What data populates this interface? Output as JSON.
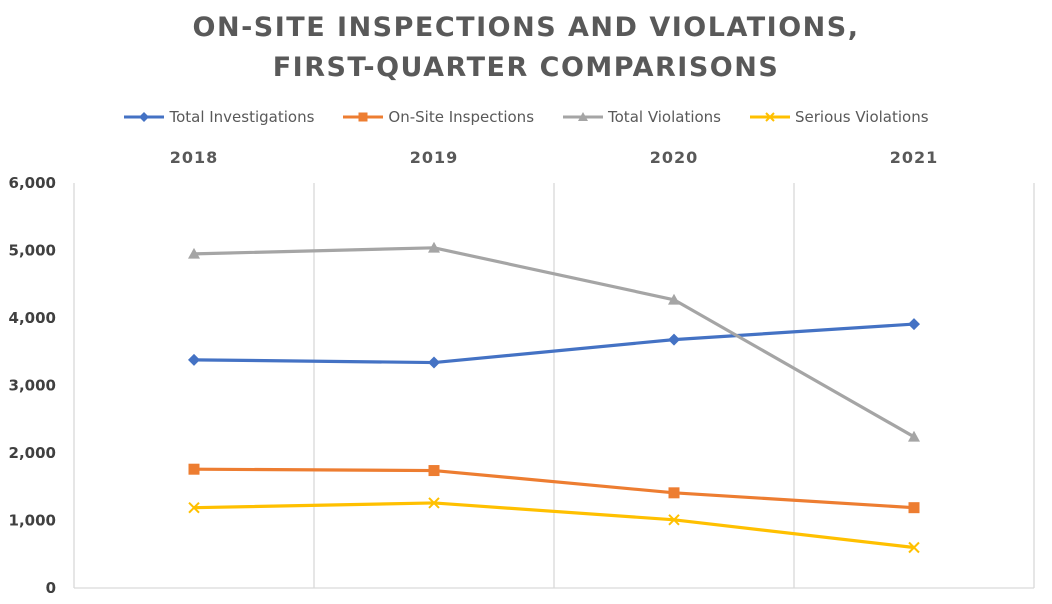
{
  "chart_data": {
    "type": "line",
    "title_line1": "ON-SITE INSPECTIONS AND VIOLATIONS,",
    "title_line2": "FIRST-QUARTER COMPARISONS",
    "categories": [
      "2018",
      "2019",
      "2020",
      "2021"
    ],
    "ylim": [
      0,
      6000
    ],
    "yticks": [
      "0",
      "1,000",
      "2,000",
      "3,000",
      "4,000",
      "5,000",
      "6,000"
    ],
    "ytick_values": [
      0,
      1000,
      2000,
      3000,
      4000,
      5000,
      6000
    ],
    "legend_position": "top",
    "grid": "vertical",
    "series": [
      {
        "name": "Total Investigations",
        "values": [
          3380,
          3340,
          3680,
          3910
        ],
        "color": "#4472C4",
        "marker": "diamond"
      },
      {
        "name": "On-Site Inspections",
        "values": [
          1760,
          1740,
          1410,
          1190
        ],
        "color": "#ED7D31",
        "marker": "square"
      },
      {
        "name": "Total Violations",
        "values": [
          4950,
          5040,
          4270,
          2240
        ],
        "color": "#A5A5A5",
        "marker": "triangle"
      },
      {
        "name": "Serious Violations",
        "values": [
          1190,
          1260,
          1010,
          600
        ],
        "color": "#FFC000",
        "marker": "x"
      }
    ]
  }
}
